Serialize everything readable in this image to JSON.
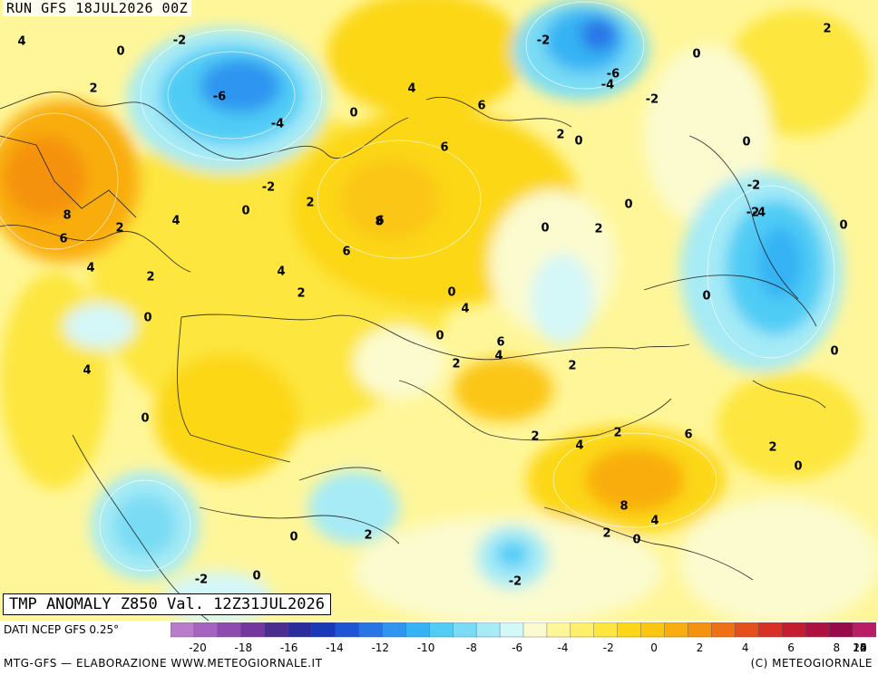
{
  "header": {
    "run_title": "RUN GFS 18JUL2026 00Z"
  },
  "footer": {
    "variable_title": "TMP ANOMALY Z850 Val. 12Z31JUL2026",
    "data_source": "DATI NCEP GFS 0.25°",
    "credit_left": "MTG-GFS — ELABORAZIONE WWW.METEOGIORNALE.IT",
    "credit_right": "(C) METEOGIORNALE"
  },
  "legend": {
    "tick_labels": [
      "-20",
      "-18",
      "-16",
      "-14",
      "-12",
      "-10",
      "-8",
      "-6",
      "-4",
      "-2",
      "0",
      "2",
      "4",
      "6",
      "8",
      "10",
      "12",
      "14",
      "16",
      "20"
    ],
    "swatches": [
      "#b97ccb",
      "#a564bf",
      "#8e4cae",
      "#74379d",
      "#4a2d8f",
      "#2c2c9c",
      "#1a39b8",
      "#1f55d4",
      "#2a75e6",
      "#2f95f0",
      "#36b3f4",
      "#50ccf5",
      "#7adcf4",
      "#a6ebf6",
      "#d4f7f8",
      "#fbfbcf",
      "#fff69a",
      "#fff06a",
      "#fde63d",
      "#fcd719",
      "#fbc612",
      "#f9ad10",
      "#f5920f",
      "#ee7114",
      "#e44f1c",
      "#d93025",
      "#c41d32",
      "#ad1240",
      "#970b4b",
      "#b91d66"
    ]
  },
  "contour_labels": [
    "4",
    "0",
    "-2",
    "2",
    "-6",
    "-4",
    "0",
    "-2",
    "-2",
    "4",
    "-6",
    "-4",
    "-2",
    "6",
    "0",
    "2",
    "0",
    "6",
    "2",
    "0",
    "-2",
    "-2",
    "-4",
    "8",
    "2",
    "4",
    "2",
    "0",
    "0",
    "6",
    "8",
    "6",
    "4",
    "2",
    "0",
    "0",
    "6",
    "4",
    "2",
    "0",
    "4",
    "6",
    "2",
    "0",
    "0",
    "4",
    "2",
    "0",
    "4",
    "2",
    "2",
    "2",
    "4",
    "6",
    "2",
    "0",
    "8",
    "4",
    "2",
    "0",
    "0",
    "2",
    "-2",
    "0",
    "0",
    "-2",
    "0"
  ]
}
